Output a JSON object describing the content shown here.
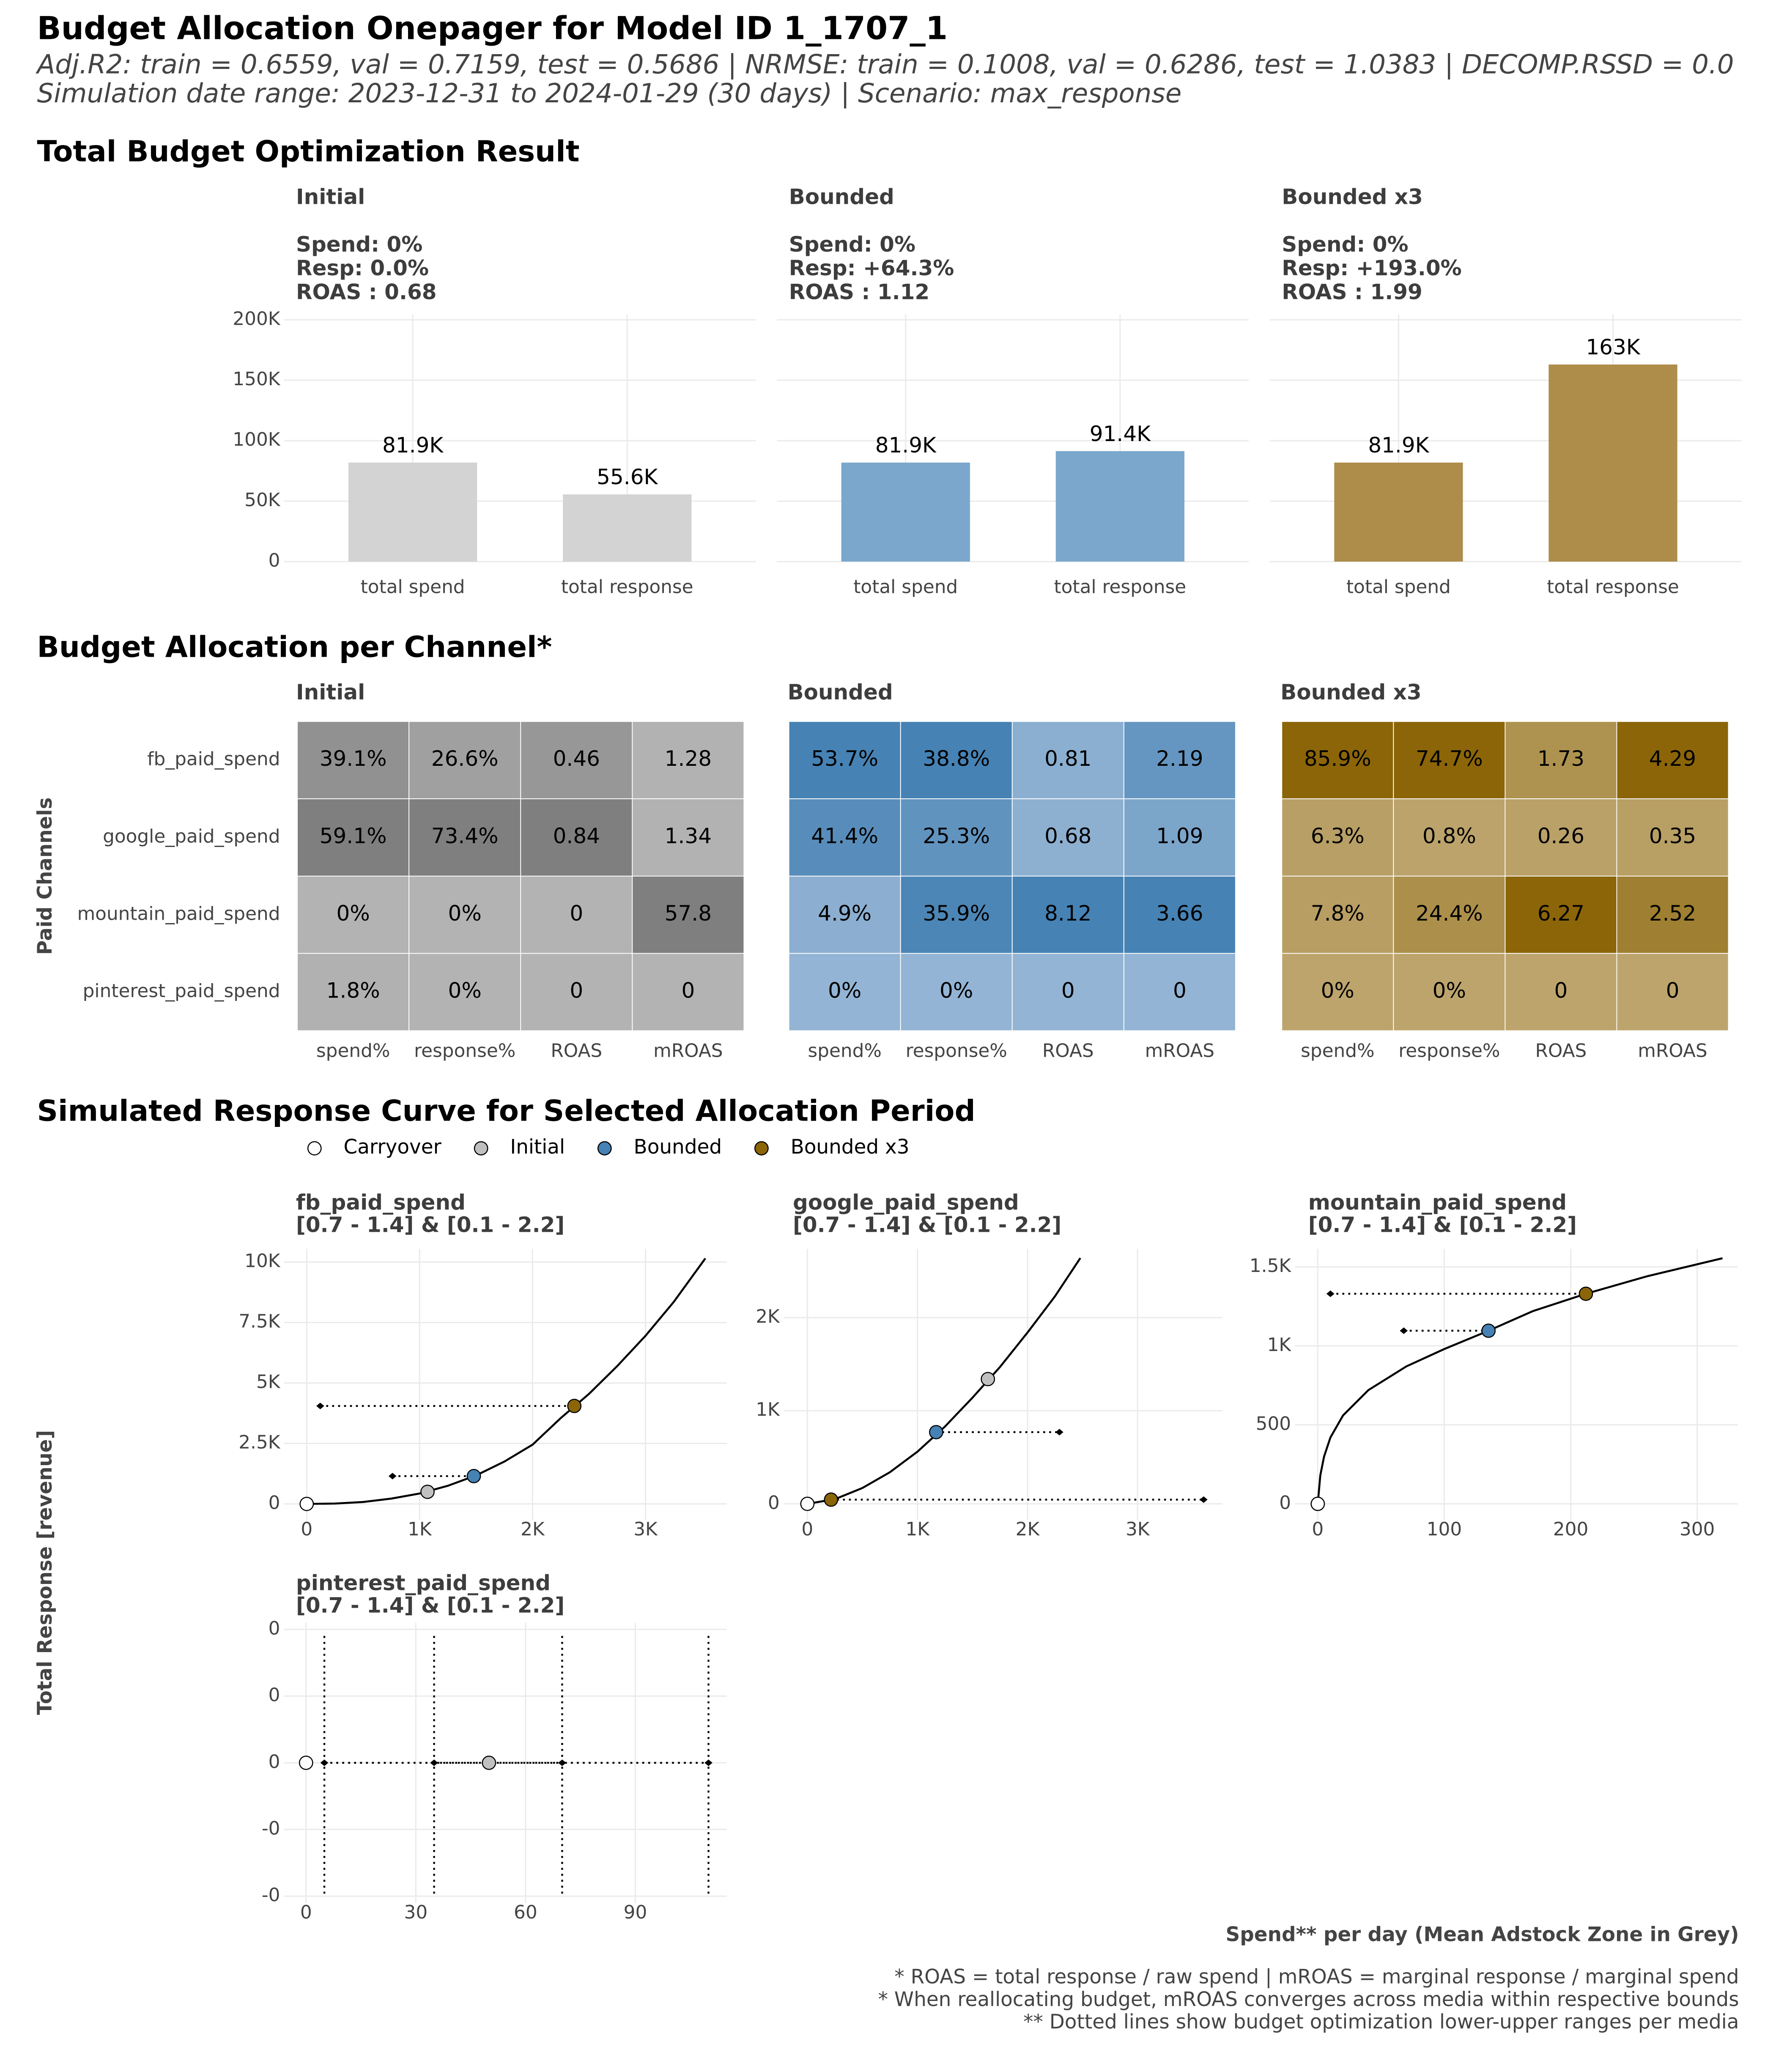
{
  "title": "Budget Allocation Onepager for Model ID 1_1707_1",
  "subtitle": [
    "Adj.R2: train = 0.6559, val = 0.7159, test = 0.5686 | NRMSE: train = 0.1008, val = 0.6286, test = 1.0383 | DECOMP.RSSD = 0.0",
    "Simulation date range: 2023-12-31 to 2024-01-29 (30 days) | Scenario: max_response"
  ],
  "sections": [
    "Total Budget Optimization Result",
    "Budget Allocation per Channel*",
    "Simulated Response Curve for Selected Allocation Period"
  ],
  "footnotes": [
    "* ROAS = total response / raw spend | mROAS = marginal response / marginal spend",
    "* When reallocating budget, mROAS converges across media within respective bounds",
    "** Dotted lines show budget optimization lower-upper ranges per media"
  ],
  "chart_data": [
    {
      "type": "bar",
      "title": "Initial",
      "subtitle": [
        "Spend: 0%",
        "Resp: 0.0%",
        "ROAS : 0.68"
      ],
      "categories": [
        "total spend",
        "total response"
      ],
      "values": [
        81900,
        55600
      ],
      "value_labels": [
        "81.9K",
        "55.6K"
      ],
      "color": "#d3d3d3",
      "ylim": [
        0,
        200000
      ],
      "yticks": [
        0,
        {
          "value": 50000,
          "label": "50K"
        },
        {
          "value": 100000,
          "label": "100K"
        },
        {
          "value": 150000,
          "label": "150K"
        },
        {
          "value": 200000,
          "label": "200K"
        }
      ],
      "grid": true
    },
    {
      "type": "bar",
      "title": "Bounded",
      "subtitle": [
        "Spend: 0%",
        "Resp: +64.3%",
        "ROAS : 1.12"
      ],
      "categories": [
        "total spend",
        "total response"
      ],
      "values": [
        81900,
        91400
      ],
      "value_labels": [
        "81.9K",
        "91.4K"
      ],
      "color": "#7ba7cc",
      "ylim": [
        0,
        200000
      ],
      "grid": true
    },
    {
      "type": "bar",
      "title": "Bounded x3",
      "subtitle": [
        "Spend: 0%",
        "Resp: +193.0%",
        "ROAS : 1.99"
      ],
      "categories": [
        "total spend",
        "total response"
      ],
      "values": [
        81900,
        163000
      ],
      "value_labels": [
        "81.9K",
        "163K"
      ],
      "color": "#ae8c4a",
      "ylim": [
        0,
        200000
      ],
      "grid": true
    },
    {
      "type": "heatmap",
      "title": "Initial",
      "ylabel": "Paid Channels",
      "rows": [
        "fb_paid_spend",
        "google_paid_spend",
        "mountain_paid_spend",
        "pinterest_paid_spend"
      ],
      "columns": [
        "spend%",
        "response%",
        "ROAS",
        "mROAS"
      ],
      "values": [
        [
          39.1,
          26.6,
          0.46,
          1.28
        ],
        [
          59.1,
          73.4,
          0.84,
          1.34
        ],
        [
          0,
          0,
          0,
          57.8
        ],
        [
          1.8,
          0,
          0,
          0
        ]
      ],
      "value_labels": [
        [
          "39.1%",
          "26.6%",
          "0.46",
          "1.28"
        ],
        [
          "59.1%",
          "73.4%",
          "0.84",
          "1.34"
        ],
        [
          "0%",
          "0%",
          "0",
          "57.8"
        ],
        [
          "1.8%",
          "0%",
          "0",
          "0"
        ]
      ],
      "colors": [
        "#b3b3b3",
        "#7f7f7f"
      ]
    },
    {
      "type": "heatmap",
      "title": "Bounded",
      "columns": [
        "spend%",
        "response%",
        "ROAS",
        "mROAS"
      ],
      "values": [
        [
          53.7,
          38.8,
          0.81,
          2.19
        ],
        [
          41.4,
          25.3,
          0.68,
          1.09
        ],
        [
          4.9,
          35.9,
          8.12,
          3.66
        ],
        [
          0,
          0,
          0,
          0
        ]
      ],
      "value_labels": [
        [
          "53.7%",
          "38.8%",
          "0.81",
          "2.19"
        ],
        [
          "41.4%",
          "25.3%",
          "0.68",
          "1.09"
        ],
        [
          "4.9%",
          "35.9%",
          "8.12",
          "3.66"
        ],
        [
          "0%",
          "0%",
          "0",
          "0"
        ]
      ],
      "colors": [
        "#93b4d4",
        "#4682b4"
      ]
    },
    {
      "type": "heatmap",
      "title": "Bounded x3",
      "columns": [
        "spend%",
        "response%",
        "ROAS",
        "mROAS"
      ],
      "values": [
        [
          85.9,
          74.7,
          1.73,
          4.29
        ],
        [
          6.3,
          0.8,
          0.26,
          0.35
        ],
        [
          7.8,
          24.4,
          6.27,
          2.52
        ],
        [
          0,
          0,
          0,
          0
        ]
      ],
      "value_labels": [
        [
          "85.9%",
          "74.7%",
          "1.73",
          "4.29"
        ],
        [
          "6.3%",
          "0.8%",
          "0.26",
          "0.35"
        ],
        [
          "7.8%",
          "24.4%",
          "6.27",
          "2.52"
        ],
        [
          "0%",
          "0%",
          "0",
          "0"
        ]
      ],
      "colors": [
        "#bca46c",
        "#8b6508"
      ]
    },
    {
      "type": "response_curves",
      "legend": [
        {
          "name": "Carryover",
          "color": "#ffffff"
        },
        {
          "name": "Initial",
          "color": "#c0c0c0"
        },
        {
          "name": "Bounded",
          "color": "#4682b4"
        },
        {
          "name": "Bounded x3",
          "color": "#8b6508"
        }
      ],
      "xlabel": "Spend** per day (Mean Adstock Zone in Grey)",
      "ylabel": "Total Response [revenue]",
      "panels": [
        {
          "title": "fb_paid_spend",
          "subtitle": "[0.7 - 1.4] & [0.1 - 2.2]",
          "curve": {
            "x": [
              0,
              250,
              500,
              750,
              1000,
              1250,
              1500,
              1750,
              2000,
              2250,
              2500,
              2750,
              3000,
              3250,
              3530
            ],
            "y": [
              0,
              15,
              80,
              220,
              430,
              750,
              1180,
              1750,
              2450,
              3550,
              4550,
              5700,
              6950,
              8350,
              10150
            ]
          },
          "points": [
            [
              0,
              0
            ],
            [
              1070,
              500
            ],
            [
              1480,
              1150
            ],
            [
              2370,
              4050
            ]
          ],
          "bounds": [
            null,
            null,
            {
              "lower": 760,
              "upper": 1480,
              "y": 1150
            },
            {
              "lower": 120,
              "upper": 2370,
              "y": 4050
            }
          ],
          "xlim": [
            -200,
            3720
          ],
          "ylim": [
            -650,
            10550
          ],
          "xticks": [
            0,
            {
              "value": 1000,
              "label": "1K"
            },
            {
              "value": 2000,
              "label": "2K"
            },
            {
              "value": 3000,
              "label": "3K"
            }
          ],
          "yticks": [
            0,
            {
              "value": 2500,
              "label": "2.5K"
            },
            {
              "value": 5000,
              "label": "5K"
            },
            {
              "value": 7500,
              "label": "7.5K"
            },
            {
              "value": 10000,
              "label": "10K"
            }
          ]
        },
        {
          "title": "google_paid_spend",
          "subtitle": "[0.7 - 1.4] & [0.1 - 2.2]",
          "curve": {
            "x": [
              0,
              250,
              500,
              750,
              1000,
              1250,
              1500,
              1750,
              2000,
              2250,
              2480
            ],
            "y": [
              0,
              50,
              170,
              340,
              560,
              830,
              1140,
              1470,
              1840,
              2230,
              2640
            ]
          },
          "points": [
            [
              0,
              0
            ],
            [
              1640,
              1340
            ],
            [
              1170,
              770
            ],
            [
              215,
              45
            ]
          ],
          "bounds": [
            null,
            null,
            {
              "lower": 1170,
              "upper": 2290,
              "y": 770
            },
            {
              "lower": 215,
              "upper": 3600,
              "y": 45
            }
          ],
          "xlim": [
            -216,
            3770
          ],
          "ylim": [
            -170,
            2740
          ],
          "xticks": [
            0,
            {
              "value": 1000,
              "label": "1K"
            },
            {
              "value": 2000,
              "label": "2K"
            },
            {
              "value": 3000,
              "label": "3K"
            }
          ],
          "yticks": [
            0,
            {
              "value": 1000,
              "label": "1K"
            },
            {
              "value": 2000,
              "label": "2K"
            }
          ]
        },
        {
          "title": "mountain_paid_spend",
          "subtitle": "[0.7 - 1.4] & [0.1 - 2.2]",
          "curve": {
            "x": [
              0,
              2,
              5,
              10,
              20,
              40,
              70,
              100,
              135,
              170,
              212,
              260,
              320
            ],
            "y": [
              0,
              180,
              300,
              420,
              560,
              720,
              870,
              980,
              1096,
              1220,
              1330,
              1440,
              1555
            ]
          },
          "points": [
            [
              0,
              0
            ],
            [
              0,
              0
            ],
            [
              135,
              1096
            ],
            [
              212,
              1330
            ]
          ],
          "bounds": [
            null,
            null,
            {
              "lower": 68,
              "upper": 135,
              "y": 1096
            },
            {
              "lower": 10,
              "upper": 212,
              "y": 1330
            }
          ],
          "xlim": [
            -18,
            332
          ],
          "ylim": [
            -100,
            1615
          ],
          "xticks": [
            0,
            100,
            200,
            300
          ],
          "yticks": [
            0,
            500,
            {
              "value": 1000,
              "label": "1K"
            },
            {
              "value": 1500,
              "label": "1.5K"
            }
          ]
        },
        {
          "title": "pinterest_paid_spend",
          "subtitle": "[0.7 - 1.4] & [0.1 - 2.2]",
          "points": [
            [
              0,
              0
            ],
            [
              50,
              0
            ],
            null,
            null
          ],
          "bounds": [
            null,
            null,
            {
              "lower": 5,
              "upper": 70,
              "y": 0
            },
            {
              "lower": 35,
              "upper": 110,
              "y": 0
            }
          ],
          "bound_vlines": true,
          "xlim": [
            -6,
            115
          ],
          "ylim": [
            -0.105,
            0.105
          ],
          "xticks": [
            0,
            30,
            60,
            90
          ],
          "yticks": [
            {
              "value": 0.1,
              "label": "0"
            },
            {
              "value": 0.05,
              "label": "0"
            },
            0,
            {
              "value": -0.05,
              "label": "-0"
            },
            {
              "value": -0.1,
              "label": "-0"
            }
          ]
        }
      ]
    }
  ]
}
